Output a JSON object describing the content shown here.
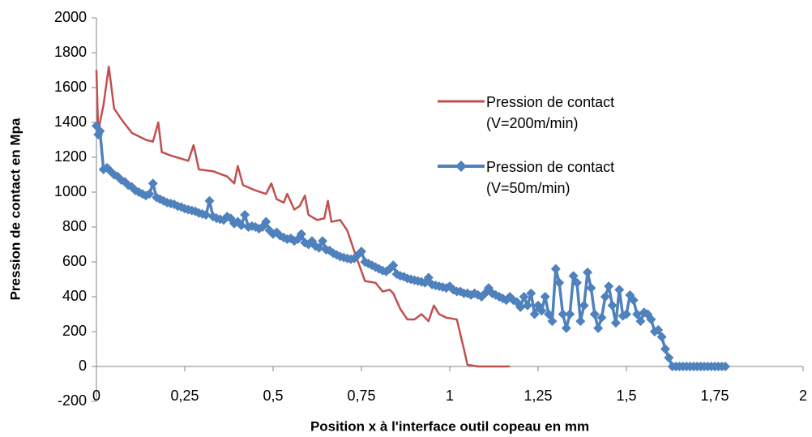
{
  "chart_data": {
    "type": "line",
    "xlabel": "Position x à l'interface outil copeau en mm",
    "ylabel": "Pression de contact en Mpa",
    "xlim": [
      0,
      2
    ],
    "xticks": [
      0,
      {
        "value": 0.25,
        "label": "0,25"
      },
      {
        "value": 0.5,
        "label": "0,5"
      },
      {
        "value": 0.75,
        "label": "0,75"
      },
      1,
      {
        "value": 1.25,
        "label": "1,25"
      },
      {
        "value": 1.5,
        "label": "1,5"
      },
      {
        "value": 1.75,
        "label": "1,75"
      },
      2
    ],
    "ylim": [
      -200,
      2000
    ],
    "yticks": [
      -200,
      0,
      200,
      400,
      600,
      800,
      1000,
      1200,
      1400,
      1600,
      1800,
      2000
    ],
    "grid": false,
    "legend": "right",
    "series": [
      {
        "name": "Pression de contact (V=200m/min)",
        "color": "#c0504d",
        "marker": "none",
        "x": [
          0,
          0.005,
          0.02,
          0.035,
          0.05,
          0.07,
          0.1,
          0.14,
          0.16,
          0.175,
          0.185,
          0.21,
          0.26,
          0.275,
          0.29,
          0.33,
          0.37,
          0.39,
          0.4,
          0.415,
          0.45,
          0.48,
          0.495,
          0.51,
          0.53,
          0.54,
          0.56,
          0.575,
          0.59,
          0.6,
          0.625,
          0.645,
          0.655,
          0.665,
          0.69,
          0.71,
          0.73,
          0.76,
          0.79,
          0.81,
          0.83,
          0.84,
          0.86,
          0.88,
          0.9,
          0.92,
          0.94,
          0.955,
          0.97,
          0.99,
          1.02,
          1.04,
          1.05,
          1.08,
          1.17
        ],
        "values": [
          1700,
          1350,
          1500,
          1720,
          1480,
          1420,
          1340,
          1300,
          1290,
          1400,
          1230,
          1210,
          1180,
          1270,
          1130,
          1120,
          1090,
          1050,
          1150,
          1040,
          1010,
          990,
          1050,
          960,
          940,
          990,
          900,
          920,
          980,
          870,
          840,
          850,
          950,
          830,
          840,
          780,
          660,
          490,
          480,
          430,
          440,
          420,
          330,
          270,
          270,
          300,
          260,
          350,
          300,
          280,
          270,
          100,
          10,
          0,
          0
        ]
      },
      {
        "name": "Pression de contact (V=50m/min)",
        "color": "#4f81bd",
        "marker": "diamond",
        "x": [
          0,
          0.005,
          0.01,
          0.02,
          0.03,
          0.04,
          0.05,
          0.06,
          0.07,
          0.08,
          0.09,
          0.1,
          0.11,
          0.12,
          0.13,
          0.14,
          0.15,
          0.16,
          0.17,
          0.18,
          0.19,
          0.2,
          0.21,
          0.22,
          0.23,
          0.24,
          0.25,
          0.26,
          0.27,
          0.28,
          0.29,
          0.3,
          0.31,
          0.32,
          0.33,
          0.34,
          0.35,
          0.36,
          0.37,
          0.38,
          0.39,
          0.4,
          0.41,
          0.42,
          0.43,
          0.44,
          0.45,
          0.46,
          0.47,
          0.48,
          0.49,
          0.5,
          0.51,
          0.52,
          0.53,
          0.54,
          0.55,
          0.56,
          0.57,
          0.58,
          0.59,
          0.6,
          0.61,
          0.62,
          0.63,
          0.64,
          0.65,
          0.66,
          0.67,
          0.68,
          0.69,
          0.7,
          0.71,
          0.72,
          0.73,
          0.74,
          0.75,
          0.76,
          0.77,
          0.78,
          0.79,
          0.8,
          0.81,
          0.82,
          0.83,
          0.84,
          0.85,
          0.86,
          0.87,
          0.88,
          0.89,
          0.9,
          0.91,
          0.92,
          0.93,
          0.94,
          0.95,
          0.96,
          0.97,
          0.98,
          0.99,
          1.0,
          1.01,
          1.02,
          1.03,
          1.04,
          1.05,
          1.06,
          1.07,
          1.08,
          1.09,
          1.1,
          1.11,
          1.12,
          1.13,
          1.14,
          1.15,
          1.16,
          1.17,
          1.18,
          1.19,
          1.2,
          1.21,
          1.22,
          1.23,
          1.24,
          1.25,
          1.26,
          1.27,
          1.28,
          1.29,
          1.3,
          1.31,
          1.32,
          1.33,
          1.34,
          1.35,
          1.36,
          1.37,
          1.38,
          1.39,
          1.4,
          1.41,
          1.42,
          1.43,
          1.44,
          1.45,
          1.46,
          1.47,
          1.48,
          1.49,
          1.5,
          1.51,
          1.52,
          1.53,
          1.54,
          1.55,
          1.56,
          1.57,
          1.58,
          1.59,
          1.6,
          1.61,
          1.62,
          1.63,
          1.64,
          1.65,
          1.66,
          1.67,
          1.68,
          1.69,
          1.7,
          1.71,
          1.72,
          1.73,
          1.74,
          1.75,
          1.76,
          1.77,
          1.78
        ],
        "values": [
          1380,
          1330,
          1350,
          1130,
          1140,
          1120,
          1100,
          1090,
          1070,
          1060,
          1040,
          1030,
          1010,
          1000,
          990,
          980,
          990,
          1050,
          970,
          960,
          950,
          940,
          935,
          930,
          920,
          915,
          905,
          900,
          895,
          890,
          880,
          875,
          870,
          950,
          860,
          850,
          845,
          840,
          860,
          850,
          820,
          830,
          810,
          870,
          800,
          805,
          800,
          790,
          800,
          830,
          780,
          760,
          770,
          750,
          740,
          730,
          735,
          720,
          730,
          760,
          710,
          700,
          720,
          690,
          680,
          720,
          670,
          665,
          650,
          640,
          630,
          625,
          620,
          615,
          620,
          640,
          660,
          600,
          590,
          580,
          570,
          560,
          550,
          545,
          560,
          580,
          530,
          520,
          515,
          505,
          500,
          495,
          490,
          485,
          480,
          510,
          470,
          465,
          460,
          455,
          450,
          460,
          440,
          430,
          430,
          420,
          420,
          410,
          420,
          410,
          400,
          420,
          450,
          420,
          410,
          400,
          390,
          380,
          400,
          380,
          370,
          340,
          400,
          350,
          420,
          300,
          350,
          320,
          400,
          300,
          260,
          560,
          480,
          300,
          220,
          300,
          520,
          480,
          260,
          350,
          540,
          450,
          300,
          220,
          280,
          400,
          460,
          350,
          250,
          440,
          290,
          300,
          410,
          380,
          300,
          260,
          310,
          300,
          270,
          200,
          210,
          170,
          100,
          50,
          0,
          0,
          0,
          0,
          0,
          0,
          0,
          0,
          0,
          0,
          0,
          0,
          0,
          0,
          0,
          0
        ]
      }
    ]
  }
}
